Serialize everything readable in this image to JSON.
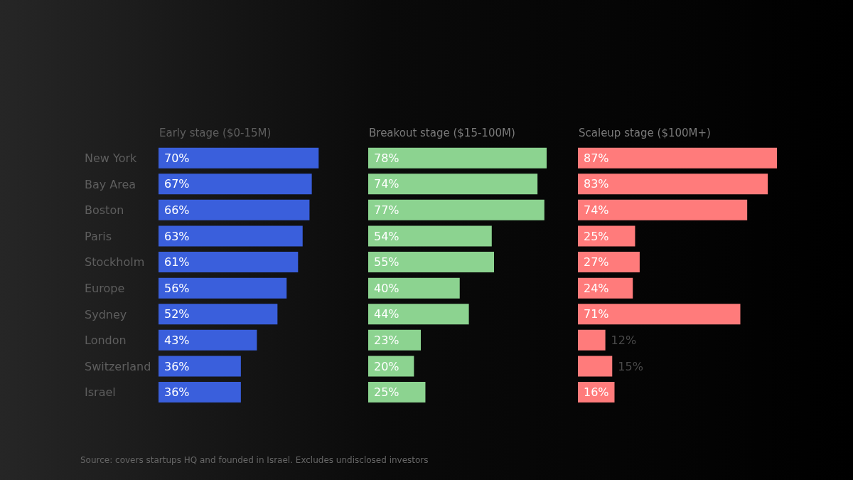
{
  "chart_data": [
    {
      "type": "bar",
      "orientation": "horizontal",
      "title": "Early stage ($0-15M)",
      "tick_labels": "y",
      "categories": [
        "New York",
        "Bay Area",
        "Boston",
        "Paris",
        "Stockholm",
        "Europe",
        "Sydney",
        "London",
        "Switzerland",
        "Israel"
      ],
      "color": "#3a5fdc",
      "values": [
        70,
        67,
        66,
        63,
        61,
        56,
        52,
        43,
        36,
        36
      ],
      "value_labels": [
        "70%",
        "67%",
        "66%",
        "63%",
        "61%",
        "56%",
        "52%",
        "43%",
        "36%",
        "36%"
      ],
      "annotations": [
        "Source: covers startups HQ and founded in Israel. Excludes undisclosed investors"
      ]
    },
    {
      "type": "bar",
      "orientation": "horizontal",
      "title": "Breakout stage ($15-100M)",
      "tick_labels": false,
      "color": "#8cd390",
      "values": [
        78,
        74,
        77,
        54,
        55,
        40,
        44,
        23,
        20,
        25
      ],
      "value_labels": [
        "78%",
        "74%",
        "77%",
        "54%",
        "55%",
        "40%",
        "44%",
        "23%",
        "20%",
        "25%"
      ]
    },
    {
      "type": "bar",
      "orientation": "horizontal",
      "title": "Scaleup stage ($100M+)",
      "tick_labels": false,
      "color": "#ff7b7b",
      "values": [
        87,
        83,
        74,
        25,
        27,
        24,
        71,
        12,
        15,
        16
      ],
      "value_labels": [
        "87%",
        "83%",
        "74%",
        "25%",
        "27%",
        "24%",
        "71%",
        "12%",
        "15%",
        "16%"
      ]
    }
  ]
}
